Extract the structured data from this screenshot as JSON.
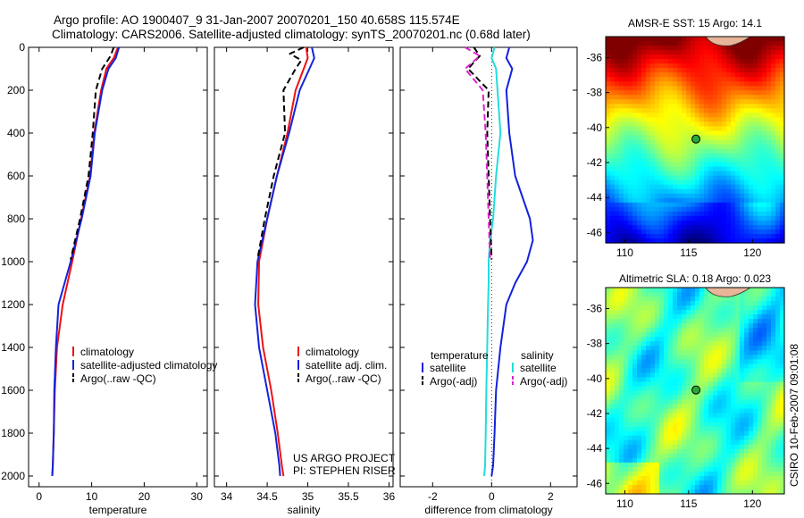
{
  "header": {
    "line1": "Argo profile: AO 1900407_9 31-Jan-2007 20070201_150 40.658S 115.574E",
    "line2": "Climatology: CARS2006. Satellite-adjusted climatology: synTS_20070201.nc (0.68d later)"
  },
  "credit": {
    "project": "US ARGO PROJECT",
    "pi": "PI: STEPHEN RISER",
    "stamp": "CSIRO 10-Feb-2007 09:01:08"
  },
  "colors": {
    "climatology": "#ee1111",
    "satellite": "#1122dd",
    "argo": "#000000",
    "sat_salinity": "#22dddd",
    "argo_salinity": "#dd22cc"
  },
  "chart_data": [
    {
      "type": "line",
      "panel": "temperature",
      "xlabel": "temperature",
      "ylabel": "",
      "xlim": [
        -2,
        32
      ],
      "ylim": [
        0,
        2050
      ],
      "y_reversed": true,
      "xticks": [
        0,
        10,
        20,
        30
      ],
      "yticks": [
        0,
        200,
        400,
        600,
        800,
        1000,
        1200,
        1400,
        1600,
        1800,
        2000
      ],
      "legend": [
        "climatology",
        "satellite-adjusted climatology",
        "Argo(..raw -QC)"
      ],
      "series": [
        {
          "name": "climatology",
          "color_key": "climatology",
          "dash": "solid",
          "x": [
            15.0,
            14.2,
            12.8,
            11.8,
            10.5,
            9.7,
            8.0,
            6.3,
            4.5,
            3.4,
            3.0,
            2.8,
            2.6,
            2.5
          ],
          "y": [
            0,
            50,
            100,
            200,
            400,
            600,
            800,
            1000,
            1200,
            1400,
            1600,
            1800,
            1950,
            2000
          ]
        },
        {
          "name": "satellite-adjusted climatology",
          "color_key": "satellite",
          "dash": "solid",
          "x": [
            15.2,
            14.6,
            13.2,
            12.0,
            10.6,
            9.8,
            8.1,
            6.0,
            3.7,
            3.2,
            2.9,
            2.8,
            2.6,
            2.5
          ],
          "y": [
            0,
            50,
            100,
            200,
            400,
            600,
            800,
            1000,
            1200,
            1400,
            1600,
            1800,
            1950,
            2000
          ]
        },
        {
          "name": "Argo(..raw -QC)",
          "color_key": "argo",
          "dash": "dash",
          "x": [
            14.2,
            13.6,
            12.0,
            10.8,
            10.2,
            9.4,
            7.8,
            6.0
          ],
          "y": [
            0,
            40,
            100,
            200,
            400,
            600,
            800,
            990
          ]
        }
      ]
    },
    {
      "type": "line",
      "panel": "salinity",
      "xlabel": "salinity",
      "ylabel": "",
      "xlim": [
        33.85,
        36.05
      ],
      "ylim": [
        0,
        2050
      ],
      "y_reversed": true,
      "xticks": [
        34,
        34.5,
        35,
        35.5,
        36
      ],
      "legend": [
        "climatology",
        "satellite adj. clim.",
        "Argo(..raw -QC)"
      ],
      "series": [
        {
          "name": "climatology",
          "color_key": "climatology",
          "dash": "solid",
          "x": [
            34.98,
            35.0,
            34.95,
            34.85,
            34.75,
            34.62,
            34.5,
            34.4,
            34.39,
            34.45,
            34.55,
            34.63,
            34.68,
            34.7
          ],
          "y": [
            0,
            50,
            100,
            200,
            400,
            600,
            800,
            1000,
            1200,
            1400,
            1600,
            1800,
            1950,
            2000
          ]
        },
        {
          "name": "satellite adj. clim.",
          "color_key": "satellite",
          "dash": "solid",
          "x": [
            35.05,
            35.08,
            35.02,
            34.9,
            34.77,
            34.62,
            34.5,
            34.38,
            34.35,
            34.4,
            34.5,
            34.6,
            34.65,
            34.66
          ],
          "y": [
            0,
            50,
            100,
            200,
            400,
            600,
            800,
            1000,
            1200,
            1400,
            1600,
            1800,
            1950,
            2000
          ]
        },
        {
          "name": "Argo(..raw -QC)",
          "color_key": "argo",
          "dash": "dash",
          "x": [
            34.95,
            34.78,
            34.92,
            34.85,
            34.7,
            34.72,
            34.58,
            34.47,
            34.38
          ],
          "y": [
            0,
            30,
            60,
            100,
            200,
            400,
            600,
            800,
            990
          ]
        }
      ]
    },
    {
      "type": "line",
      "panel": "difference",
      "xlabel": "difference from climatology",
      "ylabel": "",
      "xlim": [
        -3.1,
        2.9
      ],
      "ylim": [
        0,
        2050
      ],
      "y_reversed": true,
      "xticks": [
        -2,
        0,
        2
      ],
      "legend_temperature_title": "temperature",
      "legend_salinity_title": "salinity",
      "legend": [
        "satellite",
        "Argo(-adj)",
        "satellite",
        "Argo(-adj)"
      ],
      "series": [
        {
          "name": "temperature satellite",
          "color_key": "satellite",
          "dash": "solid",
          "x": [
            0.6,
            0.5,
            0.7,
            0.5,
            0.6,
            0.8,
            1.3,
            1.4,
            1.2,
            0.8,
            0.5,
            0.3,
            0.15,
            0.1,
            0.05,
            0.0
          ],
          "y": [
            0,
            50,
            100,
            200,
            400,
            600,
            800,
            900,
            1000,
            1100,
            1200,
            1400,
            1600,
            1800,
            1950,
            2000
          ]
        },
        {
          "name": "salinity satellite",
          "color_key": "sat_salinity",
          "dash": "solid",
          "x": [
            0.1,
            0.0,
            0.15,
            0.2,
            0.3,
            0.15,
            0.05,
            -0.05,
            -0.1,
            -0.1,
            -0.12,
            -0.15,
            -0.18,
            -0.2,
            -0.22,
            -0.25
          ],
          "y": [
            0,
            50,
            100,
            200,
            400,
            600,
            800,
            900,
            1000,
            1100,
            1200,
            1400,
            1600,
            1800,
            1950,
            2000
          ]
        },
        {
          "name": "temperature Argo(-adj)",
          "color_key": "argo",
          "dash": "dash",
          "x": [
            -0.6,
            -0.4,
            -0.8,
            -0.1,
            -0.15,
            -0.1,
            -0.05,
            0.0
          ],
          "y": [
            0,
            40,
            100,
            200,
            400,
            600,
            800,
            990
          ]
        },
        {
          "name": "salinity Argo(-adj)",
          "color_key": "argo_salinity",
          "dash": "dash",
          "x": [
            -0.9,
            -0.4,
            -0.9,
            -0.3,
            -0.2,
            -0.15,
            -0.1,
            -0.05
          ],
          "y": [
            0,
            40,
            100,
            200,
            400,
            600,
            800,
            990
          ]
        }
      ]
    },
    {
      "type": "heatmap",
      "panel": "sst-map",
      "title": "AMSR-E SST: 15 Argo: 14.1",
      "xlim": [
        108.5,
        122.5
      ],
      "ylim": [
        -46.6,
        -34.8
      ],
      "xticks": [
        110,
        115,
        120
      ],
      "yticks": [
        -36,
        -38,
        -40,
        -42,
        -44,
        -46
      ],
      "argo_marker": {
        "lon": 115.574,
        "lat": -40.658
      }
    },
    {
      "type": "heatmap",
      "panel": "sla-map",
      "title": "Altimetric SLA: 0.18 Argo: 0.023",
      "xlim": [
        108.5,
        122.5
      ],
      "ylim": [
        -46.6,
        -34.8
      ],
      "xticks": [
        110,
        115,
        120
      ],
      "yticks": [
        -36,
        -38,
        -40,
        -42,
        -44,
        -46
      ],
      "argo_marker": {
        "lon": 115.574,
        "lat": -40.658
      }
    }
  ]
}
